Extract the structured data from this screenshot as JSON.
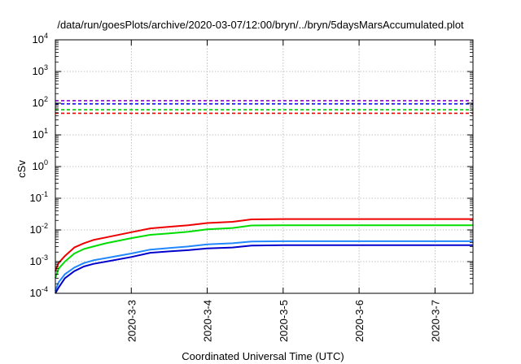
{
  "chart_data": {
    "type": "line",
    "title": "/data/run/goesPlots/archive/2020-03-07/12:00/bryn/../bryn/5daysMarsAccumulated.plot",
    "xlabel": "Coordinated Universal Time (UTC)",
    "ylabel": "cSv",
    "y_scale": "log",
    "ylim": [
      0.0001,
      10000
    ],
    "xlim": [
      "2020-03-02 00:00",
      "2020-03-07 12:00"
    ],
    "y_ticks": [
      {
        "value": 0.0001,
        "base": "10",
        "exp": "-4"
      },
      {
        "value": 0.001,
        "base": "10",
        "exp": "-3"
      },
      {
        "value": 0.01,
        "base": "10",
        "exp": "-2"
      },
      {
        "value": 0.1,
        "base": "10",
        "exp": "-1"
      },
      {
        "value": 1,
        "base": "10",
        "exp": "0"
      },
      {
        "value": 10,
        "base": "10",
        "exp": "1"
      },
      {
        "value": 100,
        "base": "10",
        "exp": "2"
      },
      {
        "value": 1000,
        "base": "10",
        "exp": "3"
      },
      {
        "value": 10000,
        "base": "10",
        "exp": "4"
      }
    ],
    "x_ticks": [
      {
        "value": "2020-03-03 00:00",
        "label": "2020-3-3"
      },
      {
        "value": "2020-03-04 00:00",
        "label": "2020-3-4"
      },
      {
        "value": "2020-03-05 00:00",
        "label": "2020-3-5"
      },
      {
        "value": "2020-03-06 00:00",
        "label": "2020-3-6"
      },
      {
        "value": "2020-03-07 00:00",
        "label": "2020-3-7"
      }
    ],
    "grid": true,
    "thresholds": [
      {
        "value": 120,
        "color": "#8800cc",
        "style": "dashed"
      },
      {
        "value": 95,
        "color": "#0000ee",
        "style": "dashed"
      },
      {
        "value": 62,
        "color": "#00cc00",
        "style": "dashed"
      },
      {
        "value": 48,
        "color": "#ee0000",
        "style": "dashed"
      }
    ],
    "series": [
      {
        "color": "#ee0000",
        "x": [
          "2020-03-02 00:00",
          "2020-03-02 01:00",
          "2020-03-02 03:00",
          "2020-03-02 06:00",
          "2020-03-02 09:00",
          "2020-03-02 12:00",
          "2020-03-02 16:00",
          "2020-03-03 00:00",
          "2020-03-03 06:00",
          "2020-03-03 12:00",
          "2020-03-03 18:00",
          "2020-03-04 00:00",
          "2020-03-04 08:00",
          "2020-03-04 14:00",
          "2020-03-05 00:00",
          "2020-03-06 00:00",
          "2020-03-07 12:00"
        ],
        "y": [
          0.0005,
          0.0009,
          0.0015,
          0.0028,
          0.0038,
          0.0048,
          0.0058,
          0.0085,
          0.0112,
          0.0126,
          0.014,
          0.0165,
          0.018,
          0.0215,
          0.022,
          0.022,
          0.022
        ]
      },
      {
        "color": "#00dd00",
        "x": [
          "2020-03-02 00:00",
          "2020-03-02 01:00",
          "2020-03-02 03:00",
          "2020-03-02 06:00",
          "2020-03-02 09:00",
          "2020-03-02 12:00",
          "2020-03-02 16:00",
          "2020-03-03 00:00",
          "2020-03-03 06:00",
          "2020-03-03 12:00",
          "2020-03-03 18:00",
          "2020-03-04 00:00",
          "2020-03-04 08:00",
          "2020-03-04 14:00",
          "2020-03-05 00:00",
          "2020-03-06 00:00",
          "2020-03-07 12:00"
        ],
        "y": [
          0.0003,
          0.0006,
          0.001,
          0.0018,
          0.0025,
          0.003,
          0.0038,
          0.0055,
          0.007,
          0.0078,
          0.0088,
          0.0105,
          0.0115,
          0.0138,
          0.014,
          0.014,
          0.014
        ]
      },
      {
        "color": "#2288ff",
        "x": [
          "2020-03-02 00:00",
          "2020-03-02 01:00",
          "2020-03-02 03:00",
          "2020-03-02 06:00",
          "2020-03-02 09:00",
          "2020-03-02 12:00",
          "2020-03-02 16:00",
          "2020-03-03 00:00",
          "2020-03-03 06:00",
          "2020-03-03 12:00",
          "2020-03-03 18:00",
          "2020-03-04 00:00",
          "2020-03-04 08:00",
          "2020-03-04 14:00",
          "2020-03-05 00:00",
          "2020-03-06 00:00",
          "2020-03-07 12:00"
        ],
        "y": [
          0.00012,
          0.00022,
          0.0004,
          0.00065,
          0.0009,
          0.0011,
          0.0013,
          0.0018,
          0.0024,
          0.0027,
          0.003,
          0.0035,
          0.0038,
          0.0043,
          0.0044,
          0.0044,
          0.0044
        ]
      },
      {
        "color": "#0000cc",
        "x": [
          "2020-03-02 00:00",
          "2020-03-02 01:00",
          "2020-03-02 03:00",
          "2020-03-02 06:00",
          "2020-03-02 09:00",
          "2020-03-02 12:00",
          "2020-03-02 16:00",
          "2020-03-03 00:00",
          "2020-03-03 06:00",
          "2020-03-03 12:00",
          "2020-03-03 18:00",
          "2020-03-04 00:00",
          "2020-03-04 08:00",
          "2020-03-04 14:00",
          "2020-03-05 00:00",
          "2020-03-06 00:00",
          "2020-03-07 12:00"
        ],
        "y": [
          0.0001,
          0.00015,
          0.0003,
          0.0005,
          0.0007,
          0.00085,
          0.001,
          0.0014,
          0.0019,
          0.0021,
          0.0023,
          0.0026,
          0.0028,
          0.0032,
          0.0033,
          0.0033,
          0.0033
        ]
      }
    ]
  }
}
